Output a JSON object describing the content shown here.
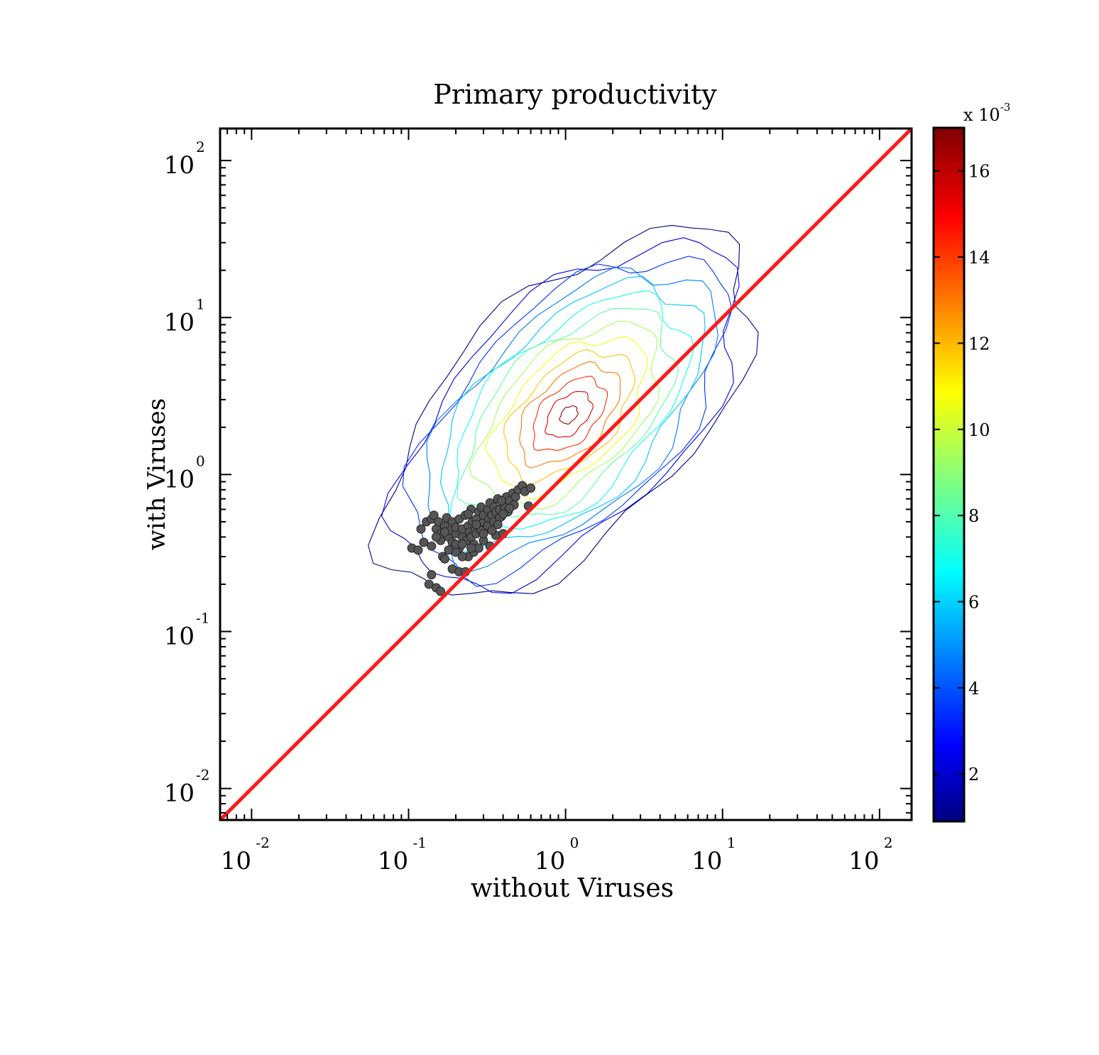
{
  "chart_data": {
    "type": "scatter",
    "title": "Primary productivity",
    "xlabel": "without Viruses",
    "ylabel": "with Viruses",
    "xscale": "log",
    "yscale": "log",
    "xlim": [
      0.0063,
      160
    ],
    "ylim": [
      0.0063,
      160
    ],
    "x_ticks": [
      {
        "base": "10",
        "exp": "-2",
        "value": 0.01
      },
      {
        "base": "10",
        "exp": "-1",
        "value": 0.1
      },
      {
        "base": "10",
        "exp": "0",
        "value": 1
      },
      {
        "base": "10",
        "exp": "1",
        "value": 10
      },
      {
        "base": "10",
        "exp": "2",
        "value": 100
      }
    ],
    "y_ticks": [
      {
        "base": "10",
        "exp": "-2",
        "value": 0.01
      },
      {
        "base": "10",
        "exp": "-1",
        "value": 0.1
      },
      {
        "base": "10",
        "exp": "0",
        "value": 1
      },
      {
        "base": "10",
        "exp": "1",
        "value": 10
      },
      {
        "base": "10",
        "exp": "2",
        "value": 100
      }
    ],
    "identity_line": {
      "color": "#ff1a1a",
      "from": [
        0.0063,
        0.0063
      ],
      "to": [
        160,
        160
      ]
    },
    "density_contours": {
      "peak": [
        1.05,
        2.4
      ],
      "outer_extent_x": [
        0.15,
        12
      ],
      "outer_extent_y": [
        0.18,
        55
      ],
      "levels": [
        0.001,
        0.0022,
        0.0034,
        0.0046,
        0.0058,
        0.007,
        0.0082,
        0.0094,
        0.0106,
        0.0118,
        0.013,
        0.0142,
        0.0154,
        0.0166
      ]
    },
    "scatter_points": [
      [
        0.105,
        0.34
      ],
      [
        0.115,
        0.33
      ],
      [
        0.125,
        0.37
      ],
      [
        0.13,
        0.5
      ],
      [
        0.14,
        0.52
      ],
      [
        0.145,
        0.55
      ],
      [
        0.15,
        0.45
      ],
      [
        0.155,
        0.5
      ],
      [
        0.16,
        0.38
      ],
      [
        0.16,
        0.42
      ],
      [
        0.165,
        0.3
      ],
      [
        0.17,
        0.47
      ],
      [
        0.175,
        0.53
      ],
      [
        0.18,
        0.4
      ],
      [
        0.185,
        0.44
      ],
      [
        0.19,
        0.37
      ],
      [
        0.19,
        0.5
      ],
      [
        0.2,
        0.42
      ],
      [
        0.2,
        0.46
      ],
      [
        0.21,
        0.34
      ],
      [
        0.21,
        0.52
      ],
      [
        0.22,
        0.4
      ],
      [
        0.22,
        0.45
      ],
      [
        0.23,
        0.55
      ],
      [
        0.235,
        0.38
      ],
      [
        0.24,
        0.47
      ],
      [
        0.245,
        0.43
      ],
      [
        0.25,
        0.6
      ],
      [
        0.255,
        0.5
      ],
      [
        0.26,
        0.36
      ],
      [
        0.265,
        0.44
      ],
      [
        0.27,
        0.52
      ],
      [
        0.28,
        0.58
      ],
      [
        0.285,
        0.47
      ],
      [
        0.29,
        0.62
      ],
      [
        0.3,
        0.5
      ],
      [
        0.3,
        0.55
      ],
      [
        0.31,
        0.45
      ],
      [
        0.32,
        0.6
      ],
      [
        0.325,
        0.52
      ],
      [
        0.33,
        0.66
      ],
      [
        0.34,
        0.55
      ],
      [
        0.345,
        0.48
      ],
      [
        0.35,
        0.62
      ],
      [
        0.36,
        0.58
      ],
      [
        0.37,
        0.7
      ],
      [
        0.38,
        0.6
      ],
      [
        0.39,
        0.54
      ],
      [
        0.4,
        0.66
      ],
      [
        0.41,
        0.62
      ],
      [
        0.42,
        0.72
      ],
      [
        0.44,
        0.68
      ],
      [
        0.46,
        0.76
      ],
      [
        0.48,
        0.72
      ],
      [
        0.5,
        0.8
      ],
      [
        0.53,
        0.85
      ],
      [
        0.55,
        0.78
      ],
      [
        0.6,
        0.82
      ],
      [
        0.58,
        0.63
      ],
      [
        0.135,
        0.2
      ],
      [
        0.14,
        0.23
      ],
      [
        0.15,
        0.19
      ],
      [
        0.16,
        0.18
      ],
      [
        0.17,
        0.29
      ],
      [
        0.19,
        0.25
      ],
      [
        0.2,
        0.32
      ],
      [
        0.21,
        0.24
      ],
      [
        0.23,
        0.24
      ],
      [
        0.24,
        0.3
      ],
      [
        0.26,
        0.32
      ],
      [
        0.28,
        0.34
      ],
      [
        0.3,
        0.38
      ],
      [
        0.33,
        0.35
      ],
      [
        0.36,
        0.41
      ],
      [
        0.4,
        0.42
      ],
      [
        0.18,
        0.33
      ],
      [
        0.2,
        0.36
      ],
      [
        0.22,
        0.36
      ],
      [
        0.25,
        0.4
      ],
      [
        0.27,
        0.42
      ],
      [
        0.29,
        0.44
      ],
      [
        0.32,
        0.47
      ],
      [
        0.35,
        0.5
      ],
      [
        0.38,
        0.53
      ],
      [
        0.43,
        0.58
      ],
      [
        0.47,
        0.64
      ],
      [
        0.15,
        0.4
      ],
      [
        0.17,
        0.43
      ],
      [
        0.24,
        0.56
      ],
      [
        0.27,
        0.48
      ],
      [
        0.3,
        0.42
      ],
      [
        0.34,
        0.44
      ],
      [
        0.37,
        0.48
      ],
      [
        0.4,
        0.56
      ],
      [
        0.44,
        0.61
      ],
      [
        0.12,
        0.45
      ],
      [
        0.14,
        0.35
      ],
      [
        0.22,
        0.3
      ],
      [
        0.25,
        0.34
      ],
      [
        0.39,
        0.68
      ]
    ],
    "grid": false,
    "colorbar": {
      "multiplier_base": "x 10",
      "multiplier_exp": "-3",
      "range": [
        0.9,
        17
      ],
      "ticks": [
        "2",
        "4",
        "6",
        "8",
        "10",
        "12",
        "14",
        "16"
      ],
      "colormap": "jet"
    }
  }
}
